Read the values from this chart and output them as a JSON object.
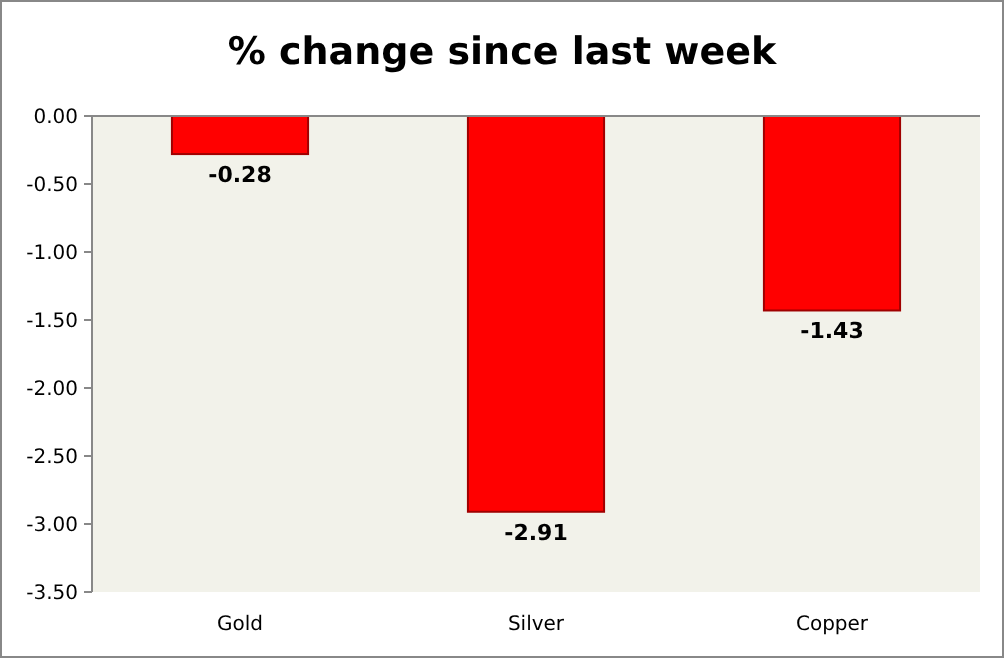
{
  "chart_data": {
    "type": "bar",
    "title": "% change since last week",
    "categories": [
      "Gold",
      "Silver",
      "Copper"
    ],
    "values": [
      -0.28,
      -2.91,
      -1.43
    ],
    "color": "#ff0000",
    "data_labels": true,
    "ylim": [
      -3.5,
      0
    ],
    "yticks": [
      {
        "value": 0,
        "label": "0.00"
      },
      {
        "value": -0.5,
        "label": "-0.50"
      },
      {
        "value": -1,
        "label": "-1.00"
      },
      {
        "value": -1.5,
        "label": "-1.50"
      },
      {
        "value": -2,
        "label": "-2.00"
      },
      {
        "value": -2.5,
        "label": "-2.50"
      },
      {
        "value": -3,
        "label": "-3.00"
      },
      {
        "value": -3.5,
        "label": "-3.50"
      }
    ]
  }
}
